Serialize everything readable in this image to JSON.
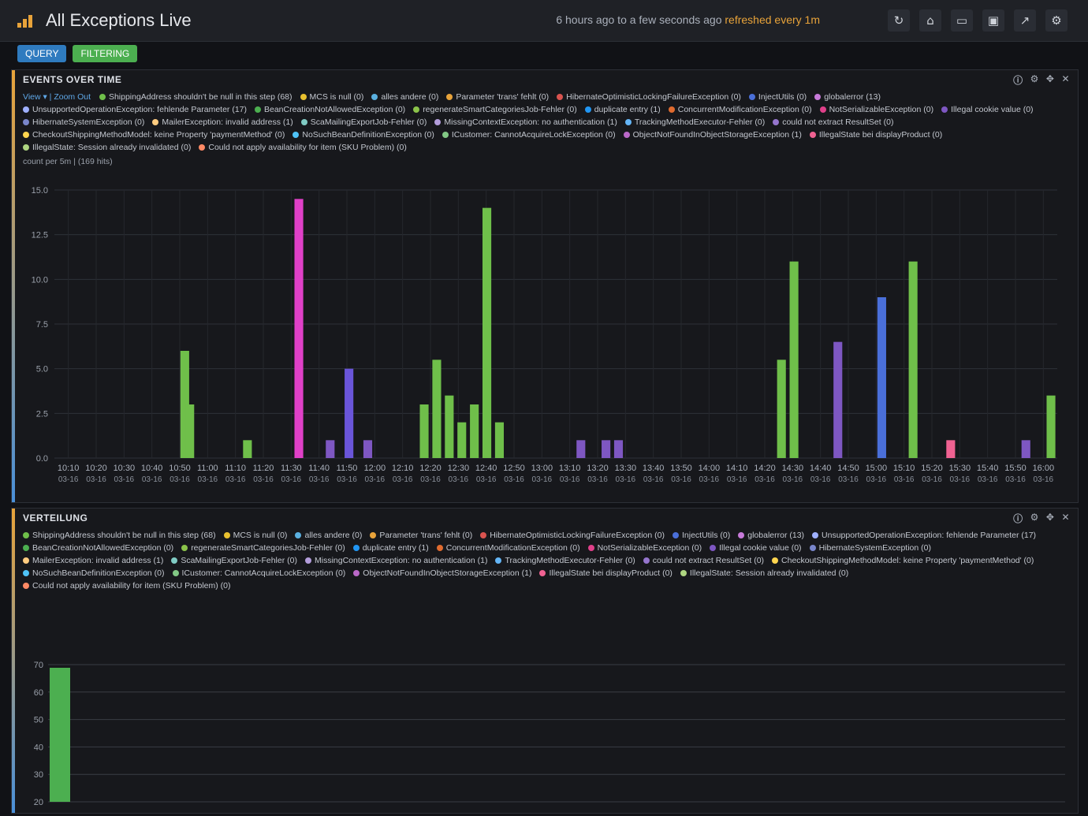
{
  "header": {
    "title": "All Exceptions Live",
    "time_range": "6 hours ago to a few seconds ago",
    "refresh": "refreshed every 1m"
  },
  "filterbar": {
    "query_label": "QUERY",
    "filter_label": "FILTERING"
  },
  "toolbar_icons": [
    "refresh-icon",
    "home-icon",
    "folder-icon",
    "save-icon",
    "share-icon",
    "settings-icon"
  ],
  "panel1": {
    "title": "EVENTS OVER TIME",
    "view_label": "View",
    "zoom_out": "Zoom Out",
    "count_text": "count per 5m | (169 hits)",
    "legend": [
      {
        "label": "ShippingAddress shouldn't be null in this step (68)",
        "color": "#6fbf4a"
      },
      {
        "label": "MCS is null (0)",
        "color": "#e8c02f"
      },
      {
        "label": "alles andere (0)",
        "color": "#5ab0e0"
      },
      {
        "label": "Parameter 'trans' fehlt (0)",
        "color": "#e8a33a"
      },
      {
        "label": "HibernateOptimisticLockingFailureException (0)",
        "color": "#d9534f"
      },
      {
        "label": "InjectUtils (0)",
        "color": "#4a6fd9"
      },
      {
        "label": "globalerror (13)",
        "color": "#c77ad9"
      },
      {
        "label": "UnsupportedOperationException: fehlende Parameter (17)",
        "color": "#9fb0ff"
      },
      {
        "label": "BeanCreationNotAllowedException (0)",
        "color": "#4caf50"
      },
      {
        "label": "regenerateSmartCategoriesJob-Fehler (0)",
        "color": "#8bc34a"
      },
      {
        "label": "duplicate entry (1)",
        "color": "#2196f3"
      },
      {
        "label": "ConcurrentModificationException (0)",
        "color": "#e06b2f"
      },
      {
        "label": "NotSerializableException (0)",
        "color": "#e0408a"
      },
      {
        "label": "Illegal cookie value (0)",
        "color": "#7e57c2"
      },
      {
        "label": "HibernateSystemException (0)",
        "color": "#7986cb"
      },
      {
        "label": "MailerException: invalid address (1)",
        "color": "#ffcc80"
      },
      {
        "label": "ScaMailingExportJob-Fehler (0)",
        "color": "#80cbc4"
      },
      {
        "label": "MissingContextException: no authentication (1)",
        "color": "#b39ddb"
      },
      {
        "label": "TrackingMethodExecutor-Fehler (0)",
        "color": "#64b5f6"
      },
      {
        "label": "could not extract ResultSet (0)",
        "color": "#9575cd"
      },
      {
        "label": "CheckoutShippingMethodModel: keine Property 'paymentMethod' (0)",
        "color": "#ffd54f"
      },
      {
        "label": "NoSuchBeanDefinitionException (0)",
        "color": "#4fc3f7"
      },
      {
        "label": "ICustomer: CannotAcquireLockException (0)",
        "color": "#81c784"
      },
      {
        "label": "ObjectNotFoundInObjectStorageException (1)",
        "color": "#ba68c8"
      },
      {
        "label": "IllegalState bei displayProduct (0)",
        "color": "#f06292"
      },
      {
        "label": "IllegalState: Session already invalidated (0)",
        "color": "#aed581"
      },
      {
        "label": "Could not apply availability for item (SKU Problem) (0)",
        "color": "#ff8a65"
      }
    ]
  },
  "panel2": {
    "title": "VERTEILUNG",
    "y_labels": [
      "70",
      "60",
      "50",
      "40",
      "30",
      "20"
    ]
  },
  "chart_data": {
    "type": "bar",
    "title": "EVENTS OVER TIME",
    "x": [
      "10:10",
      "10:20",
      "10:30",
      "10:40",
      "10:50",
      "11:00",
      "11:10",
      "11:20",
      "11:30",
      "11:40",
      "11:50",
      "12:00",
      "12:10",
      "12:20",
      "12:30",
      "12:40",
      "12:50",
      "13:00",
      "13:10",
      "13:20",
      "13:30",
      "13:40",
      "13:50",
      "14:00",
      "14:10",
      "14:20",
      "14:30",
      "14:40",
      "14:50",
      "15:00",
      "15:10",
      "15:20",
      "15:30",
      "15:40",
      "15:50",
      "16:00"
    ],
    "x_sublabel": "03-16",
    "ylim": [
      0,
      15
    ],
    "y_ticks": [
      "0.0",
      "2.5",
      "5.0",
      "7.5",
      "10.0",
      "12.5",
      "15.0"
    ],
    "bars": [
      {
        "x": 10.4,
        "value": 6,
        "color": "#6fbf4a"
      },
      {
        "x": 10.8,
        "value": 3,
        "color": "#6fbf4a"
      },
      {
        "x": 15.4,
        "value": 1,
        "color": "#6fbf4a"
      },
      {
        "x": 19.5,
        "value": 14.5,
        "color": "#e040c8"
      },
      {
        "x": 22.0,
        "value": 1,
        "color": "#7e57c2"
      },
      {
        "x": 23.5,
        "value": 5,
        "color": "#6a55d9"
      },
      {
        "x": 25.0,
        "value": 1,
        "color": "#7e57c2"
      },
      {
        "x": 29.5,
        "value": 3,
        "color": "#6fbf4a"
      },
      {
        "x": 30.5,
        "value": 5.5,
        "color": "#6fbf4a"
      },
      {
        "x": 31.5,
        "value": 3.5,
        "color": "#6fbf4a"
      },
      {
        "x": 32.5,
        "value": 2,
        "color": "#6fbf4a"
      },
      {
        "x": 33.5,
        "value": 3,
        "color": "#6fbf4a"
      },
      {
        "x": 34.5,
        "value": 14,
        "color": "#6fbf4a"
      },
      {
        "x": 35.5,
        "value": 2,
        "color": "#6fbf4a"
      },
      {
        "x": 42.0,
        "value": 1,
        "color": "#7e57c2"
      },
      {
        "x": 44.0,
        "value": 1,
        "color": "#7e57c2"
      },
      {
        "x": 45.0,
        "value": 1,
        "color": "#7e57c2"
      },
      {
        "x": 58.0,
        "value": 5.5,
        "color": "#6fbf4a"
      },
      {
        "x": 59.0,
        "value": 11,
        "color": "#6fbf4a"
      },
      {
        "x": 62.5,
        "value": 6.5,
        "color": "#7e57c2"
      },
      {
        "x": 66.0,
        "value": 9,
        "color": "#4a6fd9"
      },
      {
        "x": 68.5,
        "value": 11,
        "color": "#6fbf4a"
      },
      {
        "x": 71.5,
        "value": 1,
        "color": "#f06292"
      },
      {
        "x": 77.5,
        "value": 1,
        "color": "#7e57c2"
      },
      {
        "x": 79.5,
        "value": 3.5,
        "color": "#6fbf4a"
      }
    ]
  },
  "colors": {
    "accent": "#e8a33a",
    "query": "#2f7bbf",
    "filter": "#4caf50"
  }
}
